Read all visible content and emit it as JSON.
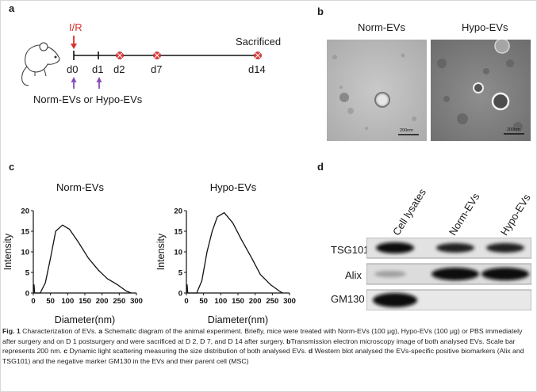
{
  "panels": {
    "a": {
      "label": "a",
      "ir": "I/R",
      "sacrificed": "Sacrificed",
      "days": [
        "d0",
        "d1",
        "d2",
        "d7",
        "d14"
      ],
      "treatment": "Norm-EVs or Hypo-EVs"
    },
    "b": {
      "label": "b",
      "image_titles": [
        "Norm-EVs",
        "Hypo-EVs"
      ],
      "scale_bars": [
        "200nm",
        "200nm"
      ]
    },
    "c": {
      "label": "c"
    },
    "d": {
      "label": "d",
      "lanes": [
        "Cell lysates",
        "Norm-EVs",
        "Hypo-EVs"
      ],
      "rows": [
        "TSG101",
        "Alix",
        "GM130"
      ]
    }
  },
  "chart_data": [
    {
      "type": "line",
      "title": "Norm-EVs",
      "xlabel": "Diameter(nm)",
      "ylabel": "Intensity",
      "xlim": [
        0,
        300
      ],
      "ylim": [
        0,
        20
      ],
      "xticks": [
        0,
        50,
        100,
        150,
        200,
        250,
        300
      ],
      "yticks": [
        0,
        5,
        10,
        15,
        20
      ],
      "x": [
        0,
        2,
        4,
        20,
        35,
        50,
        65,
        85,
        105,
        130,
        160,
        190,
        215,
        245,
        270,
        285
      ],
      "y": [
        0,
        2,
        0,
        0,
        2.5,
        8.5,
        15,
        16.5,
        15.5,
        12.5,
        8.5,
        5.5,
        3.5,
        2,
        0.5,
        0
      ]
    },
    {
      "type": "line",
      "title": "Hypo-EVs",
      "xlabel": "Diameter(nm)",
      "ylabel": "Intensity",
      "xlim": [
        0,
        300
      ],
      "ylim": [
        0,
        20
      ],
      "xticks": [
        0,
        50,
        100,
        150,
        200,
        250,
        300
      ],
      "yticks": [
        0,
        5,
        10,
        15,
        20
      ],
      "x": [
        0,
        2,
        4,
        30,
        45,
        60,
        75,
        90,
        110,
        135,
        160,
        190,
        215,
        245,
        270,
        280
      ],
      "y": [
        0,
        2,
        0,
        0,
        3,
        10,
        15,
        18.5,
        19.5,
        17,
        13,
        8.5,
        4.5,
        2,
        0.5,
        0
      ]
    }
  ],
  "caption": {
    "fig": "Fig. 1",
    "segments": [
      {
        "text": "  Characterization of EVs. "
      },
      {
        "text": "a",
        "bold": true
      },
      {
        "text": " Schematic diagram of the animal experiment. Briefly, mice were treated with Norm-EVs (100 μg), Hypo-EVs (100 μg) or PBS immediately after surgery and on D 1 postsurgery and were sacrificed at D 2, D 7, and D 14 after surgery. "
      },
      {
        "text": "b",
        "bold": true
      },
      {
        "text": "Transmission electron microscopy image of both analysed EVs. Scale bar represents 200 nm. "
      },
      {
        "text": "c",
        "bold": true
      },
      {
        "text": " Dynamic light scattering measuring the size distribution of both analysed EVs. "
      },
      {
        "text": "d",
        "bold": true
      },
      {
        "text": " Western blot analysed the EVs-specific positive biomarkers (Alix and TSG101) and the negative marker GM130 in the EVs and their parent cell (MSC)"
      }
    ]
  },
  "colors": {
    "accent_red": "#d9302c",
    "arrow_purple": "#8a4db8",
    "marker_red": "#e23b3b"
  }
}
